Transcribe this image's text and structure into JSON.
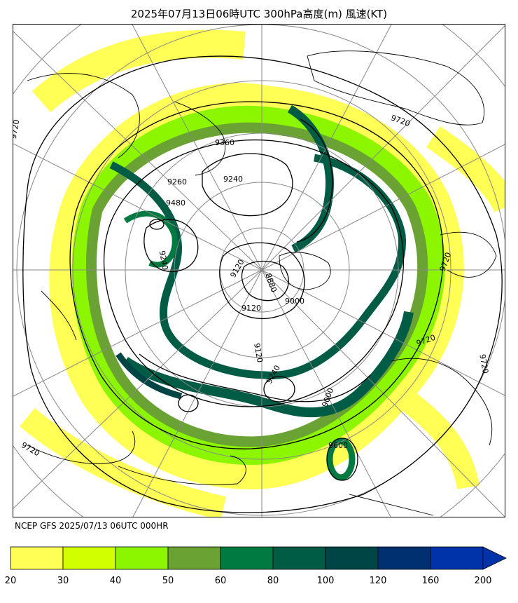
{
  "header": {
    "title": "2025年07月13日06時UTC 300hPa高度(m) 風速(KT)"
  },
  "footer": {
    "source": "NCEP GFS 2025/07/13 06UTC 000HR"
  },
  "map": {
    "projection": "polar-stereographic-north",
    "fields": [
      "300hPa geopotential height (m)",
      "wind speed (KT)"
    ],
    "contour_labels": [
      {
        "id": "c-9360",
        "text": "9360"
      },
      {
        "id": "c-9480",
        "text": "9480"
      },
      {
        "id": "c-9240a",
        "text": "9240"
      },
      {
        "id": "c-9240b",
        "text": "9240"
      },
      {
        "id": "c-9240c",
        "text": "9240"
      },
      {
        "id": "c-9120a",
        "text": "9120"
      },
      {
        "id": "c-9120b",
        "text": "9120"
      },
      {
        "id": "c-9120c",
        "text": "9120"
      },
      {
        "id": "c-9000a",
        "text": "9000"
      },
      {
        "id": "c-9000b",
        "text": "9000"
      },
      {
        "id": "c-8880",
        "text": "8880"
      },
      {
        "id": "c-9600",
        "text": "9600"
      },
      {
        "id": "c-9720a",
        "text": "9720"
      },
      {
        "id": "c-9720b",
        "text": "9720"
      },
      {
        "id": "c-9720c",
        "text": "9720"
      },
      {
        "id": "c-9720d",
        "text": "9720"
      },
      {
        "id": "c-9720e",
        "text": "9720"
      },
      {
        "id": "c-9720f",
        "text": "9720"
      },
      {
        "id": "c-9260",
        "text": "9260"
      }
    ]
  },
  "colorbar": {
    "unit": "KT",
    "ticks": [
      "20",
      "30",
      "40",
      "50",
      "60",
      "80",
      "100",
      "120",
      "160",
      "200"
    ],
    "bins": [
      {
        "from": 20,
        "to": 30,
        "color": "#ffff55"
      },
      {
        "from": 30,
        "to": 40,
        "color": "#d2ff00"
      },
      {
        "from": 40,
        "to": 50,
        "color": "#8cf500"
      },
      {
        "from": 50,
        "to": 60,
        "color": "#6aa333"
      },
      {
        "from": 60,
        "to": 80,
        "color": "#007a40"
      },
      {
        "from": 80,
        "to": 100,
        "color": "#005c45"
      },
      {
        "from": 100,
        "to": 120,
        "color": "#004545"
      },
      {
        "from": 120,
        "to": 160,
        "color": "#003070"
      },
      {
        "from": 160,
        "to": 200,
        "color": "#0033aa"
      }
    ],
    "extend": "max"
  }
}
